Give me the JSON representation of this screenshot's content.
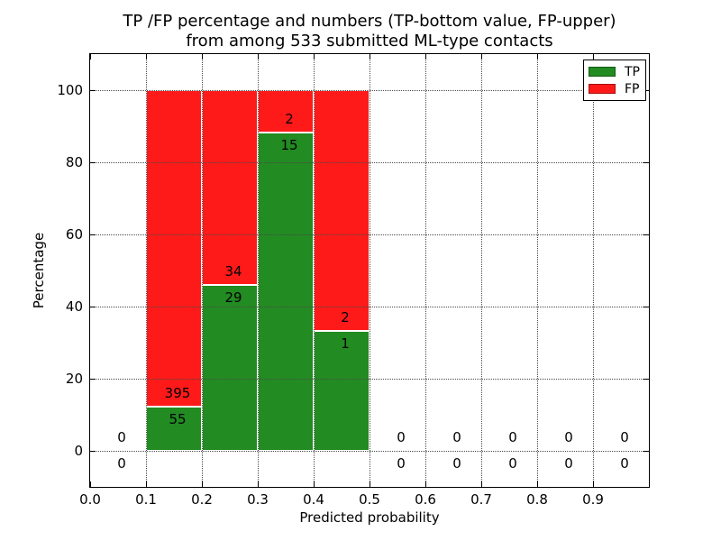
{
  "chart_data": {
    "type": "bar",
    "stacked": true,
    "title": "TP /FP percentage and numbers (TP-bottom value, FP-upper)\nfrom among 533 submitted ML-type contacts",
    "title_line1": "TP /FP percentage and numbers (TP-bottom value, FP-upper)",
    "title_line2": "from among 533 submitted ML-type contacts",
    "xlabel": "Predicted probability",
    "ylabel": "Percentage",
    "xlim": [
      0.0,
      1.0
    ],
    "ylim": [
      -10,
      110
    ],
    "x_ticks": [
      "0.0",
      "0.1",
      "0.2",
      "0.3",
      "0.4",
      "0.5",
      "0.6",
      "0.7",
      "0.8",
      "0.9"
    ],
    "y_ticks": [
      0,
      20,
      40,
      60,
      80,
      100
    ],
    "grid": true,
    "grid_linestyle": "dotted",
    "bin_edges": [
      0.0,
      0.1,
      0.2,
      0.3,
      0.4,
      0.5,
      0.6,
      0.7,
      0.8,
      0.9,
      1.0
    ],
    "series": [
      {
        "name": "TP",
        "color": "#228b22",
        "counts": [
          0,
          55,
          29,
          15,
          1,
          0,
          0,
          0,
          0,
          0
        ]
      },
      {
        "name": "FP",
        "color": "#ff1a1a",
        "counts": [
          0,
          395,
          34,
          2,
          2,
          0,
          0,
          0,
          0,
          0
        ]
      }
    ],
    "bar_percentages_tp": [
      0,
      12.22,
      46.03,
      88.24,
      33.33,
      0,
      0,
      0,
      0,
      0
    ],
    "bars_total_height_pct": 100,
    "legend": {
      "position": "upper right"
    }
  }
}
